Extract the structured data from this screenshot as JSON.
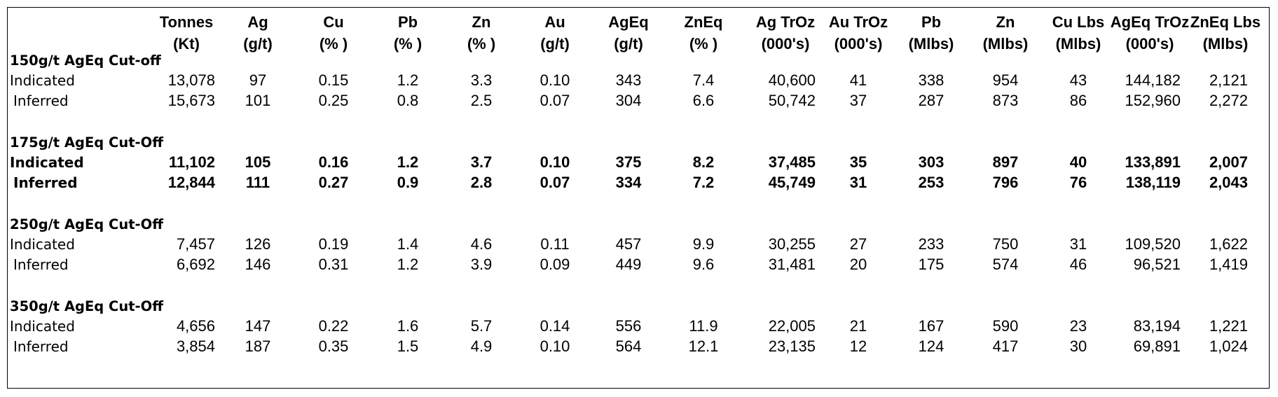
{
  "headers": [
    {
      "l1": "Tonnes",
      "l2": "(Kt)"
    },
    {
      "l1": "Ag",
      "l2": "(g/t)"
    },
    {
      "l1": "Cu",
      "l2": "(% )"
    },
    {
      "l1": "Pb",
      "l2": "(% )"
    },
    {
      "l1": "Zn",
      "l2": "(% )"
    },
    {
      "l1": "Au",
      "l2": "(g/t)"
    },
    {
      "l1": "AgEq",
      "l2": "(g/t)"
    },
    {
      "l1": "ZnEq",
      "l2": "(% )"
    },
    {
      "l1": "Ag TrOz",
      "l2": "(000's)"
    },
    {
      "l1": "Au TrOz",
      "l2": "(000's)"
    },
    {
      "l1": "Pb",
      "l2": "(Mlbs)"
    },
    {
      "l1": "Zn",
      "l2": "(Mlbs)"
    },
    {
      "l1": "Cu Lbs",
      "l2": "(Mlbs)"
    },
    {
      "l1": "AgEq TrOz",
      "l2": "(000's)"
    },
    {
      "l1": "ZnEq Lbs",
      "l2": "(Mlbs)"
    }
  ],
  "sections": [
    {
      "title": "150g/t AgEq Cut-off",
      "bold": false,
      "rows": [
        {
          "label": "Indicated",
          "values": [
            "13,078",
            "97",
            "0.15",
            "1.2",
            "3.3",
            "0.10",
            "343",
            "7.4",
            "40,600",
            "41",
            "338",
            "954",
            "43",
            "144,182",
            "2,121"
          ]
        },
        {
          "label": "Inferred",
          "values": [
            "15,673",
            "101",
            "0.25",
            "0.8",
            "2.5",
            "0.07",
            "304",
            "6.6",
            "50,742",
            "37",
            "287",
            "873",
            "86",
            "152,960",
            "2,272"
          ]
        }
      ]
    },
    {
      "title": "175g/t AgEq Cut-Off",
      "bold": true,
      "rows": [
        {
          "label": "Indicated",
          "values": [
            "11,102",
            "105",
            "0.16",
            "1.2",
            "3.7",
            "0.10",
            "375",
            "8.2",
            "37,485",
            "35",
            "303",
            "897",
            "40",
            "133,891",
            "2,007"
          ]
        },
        {
          "label": "Inferred",
          "values": [
            "12,844",
            "111",
            "0.27",
            "0.9",
            "2.8",
            "0.07",
            "334",
            "7.2",
            "45,749",
            "31",
            "253",
            "796",
            "76",
            "138,119",
            "2,043"
          ]
        }
      ]
    },
    {
      "title": "250g/t AgEq Cut-Off",
      "bold": false,
      "rows": [
        {
          "label": "Indicated",
          "values": [
            "7,457",
            "126",
            "0.19",
            "1.4",
            "4.6",
            "0.11",
            "457",
            "9.9",
            "30,255",
            "27",
            "233",
            "750",
            "31",
            "109,520",
            "1,622"
          ]
        },
        {
          "label": "Inferred",
          "values": [
            "6,692",
            "146",
            "0.31",
            "1.2",
            "3.9",
            "0.09",
            "449",
            "9.6",
            "31,481",
            "20",
            "175",
            "574",
            "46",
            "96,521",
            "1,419"
          ]
        }
      ]
    },
    {
      "title": "350g/t AgEq Cut-Off",
      "bold": false,
      "rows": [
        {
          "label": "Indicated",
          "values": [
            "4,656",
            "147",
            "0.22",
            "1.6",
            "5.7",
            "0.14",
            "556",
            "11.9",
            "22,005",
            "21",
            "167",
            "590",
            "23",
            "83,194",
            "1,221"
          ]
        },
        {
          "label": "Inferred",
          "values": [
            "3,854",
            "187",
            "0.35",
            "1.5",
            "4.9",
            "0.10",
            "564",
            "12.1",
            "23,135",
            "12",
            "124",
            "417",
            "30",
            "69,891",
            "1,024"
          ]
        }
      ]
    }
  ]
}
